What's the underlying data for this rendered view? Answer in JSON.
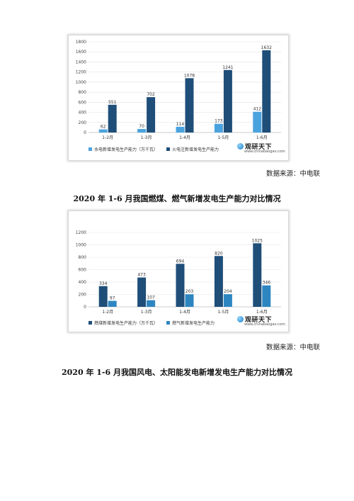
{
  "charts": [
    {
      "legend": [
        "水电新增发电生产能力（万千瓦）",
        "火电注新增发电生产能力"
      ],
      "watermark": {
        "title": "观研天下",
        "url": "www.chinabaogao.com"
      }
    },
    {
      "legend": [
        "燃煤新增发电生产能力（万千瓦）",
        "燃气新增发电生产能力"
      ],
      "watermark": {
        "title": "观研天下",
        "url": "www.chinabaogao.com"
      }
    }
  ],
  "chart_data": [
    {
      "type": "bar",
      "categories": [
        "1-2月",
        "1-3月",
        "1-4月",
        "1-5月",
        "1-6月"
      ],
      "series": [
        {
          "name": "水电新增发电生产能力（万千瓦）",
          "values": [
            62,
            70,
            114,
            173,
            412
          ],
          "color": "#4aa3df"
        },
        {
          "name": "火电注新增发电生产能力",
          "values": [
            551,
            702,
            1078,
            1241,
            1632
          ],
          "color": "#1f4e79"
        }
      ],
      "ylim": [
        0,
        1800
      ],
      "yticks": [
        0,
        200,
        400,
        600,
        800,
        1000,
        1200,
        1400,
        1600,
        1800
      ],
      "grid": true,
      "legend_position": "bottom"
    },
    {
      "type": "bar",
      "categories": [
        "1-2月",
        "1-3月",
        "1-4月",
        "1-5月",
        "1-6月"
      ],
      "series": [
        {
          "name": "燃煤新增发电生产能力（万千瓦）",
          "values": [
            334,
            473,
            694,
            820,
            1025
          ],
          "color": "#1f4e79"
        },
        {
          "name": "燃气新增发电生产能力",
          "values": [
            97,
            107,
            203,
            204,
            346
          ],
          "color": "#2e86c1"
        }
      ],
      "ylim": [
        0,
        1200
      ],
      "yticks": [
        0,
        200,
        400,
        600,
        800,
        1000,
        1200
      ],
      "grid": true,
      "legend_position": "bottom"
    }
  ],
  "doc": {
    "source1": "数据来源：中电联",
    "caption1": "2020 年 1-6 月我国燃煤、燃气新增发电生产能力对比情况",
    "source2": "数据来源：中电联",
    "caption2": "2020 年 1-6 月我国风电、太阳能发电新增发电生产能力对比情况"
  }
}
